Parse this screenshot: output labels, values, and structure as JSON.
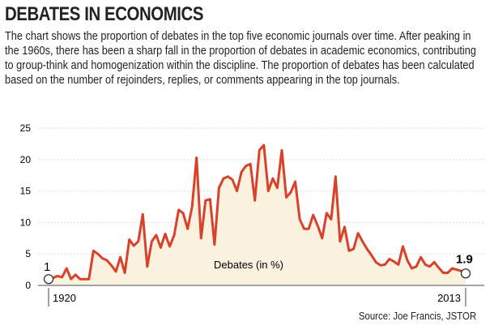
{
  "title": "DEBATES IN ECONOMICS",
  "description": "The chart shows the proportion of debates in the top five economic journals over time. After peaking in the 1960s, there has been a sharp fall in the proportion of debates in academic economics, contributing to group-think and homogenization within the discipline. The proportion of debates has been calculated based on the number of rejoinders, replies, or comments appearing in the top journals.",
  "source": "Source: Joe Francis, JSTOR",
  "colors": {
    "line": "#d9412b",
    "fill": "#fbf1df",
    "grid": "#dddddd"
  },
  "chart_data": {
    "type": "area",
    "series": [
      {
        "name": "Debates (in %)",
        "x_start": 1920,
        "x_end": 2013,
        "values": [
          1,
          1.2,
          1.5,
          1.3,
          2.7,
          1,
          1.7,
          1,
          1,
          1,
          5.5,
          5,
          4.3,
          4,
          3.2,
          2.2,
          4.5,
          2,
          7.3,
          6.3,
          7,
          11.3,
          3,
          7,
          8,
          6,
          8.2,
          6.2,
          8,
          12,
          11.5,
          9,
          12.5,
          20.3,
          7.5,
          13.5,
          13.7,
          6.5,
          15.5,
          17,
          17.3,
          16.8,
          15,
          18,
          19,
          19.3,
          13.5,
          21.5,
          22.3,
          15,
          17,
          15.5,
          21.5,
          14,
          14.8,
          16.5,
          10.5,
          9,
          9,
          11.2,
          9.5,
          7.5,
          11.5,
          10.5,
          17.3,
          7,
          9.3,
          5.5,
          5.8,
          8.3,
          7,
          5.8,
          4.8,
          3.7,
          3.2,
          3.3,
          4.2,
          3.8,
          3.3,
          6.2,
          4,
          2.7,
          3,
          4.5,
          3.3,
          3,
          3.7,
          2.8,
          2,
          2,
          2.7,
          2.5,
          2.3,
          1.9
        ]
      }
    ],
    "ylim": [
      0,
      25
    ],
    "yticks": [
      "0",
      "5",
      "10",
      "15",
      "20",
      "25"
    ],
    "xticks": [
      "1920",
      "2013"
    ],
    "annotations": {
      "start": "1",
      "end": "1.9"
    },
    "grid": true
  }
}
